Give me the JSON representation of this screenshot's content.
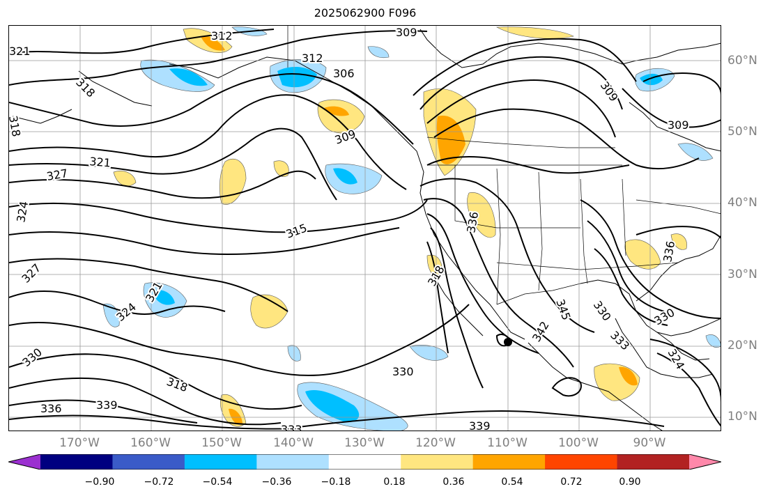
{
  "title": "2025062900 F096",
  "lat_labels": [
    "60°N",
    "50°N",
    "40°N",
    "30°N",
    "20°N",
    "10°N"
  ],
  "lon_labels": [
    "170°W",
    "160°W",
    "150°W",
    "140°W",
    "130°W",
    "120°W",
    "110°W",
    "100°W",
    "90°W"
  ],
  "colorbar": {
    "ticks": [
      "−0.90",
      "−0.72",
      "−0.54",
      "−0.36",
      "−0.18",
      "0.18",
      "0.36",
      "0.54",
      "0.72",
      "0.90"
    ],
    "colors": [
      "#9b30d0",
      "#000080",
      "#3a5bc8",
      "#00bfff",
      "#aee0ff",
      "#ffffff",
      "#ffe680",
      "#ffa500",
      "#ff4500",
      "#b22222",
      "#ff88aa"
    ]
  },
  "contour_labels": [
    "321",
    "318",
    "318",
    "327",
    "321",
    "324",
    "327",
    "330",
    "336",
    "339",
    "324",
    "321",
    "318",
    "330",
    "333",
    "339",
    "312",
    "309",
    "312",
    "306",
    "309",
    "315",
    "318",
    "336",
    "345",
    "342",
    "330",
    "333",
    "330",
    "324",
    "309",
    "309",
    "336"
  ],
  "map": {
    "lon_range": [
      -178,
      -78
    ],
    "lat_range": [
      8,
      65
    ],
    "projection": "PlateCarree"
  }
}
